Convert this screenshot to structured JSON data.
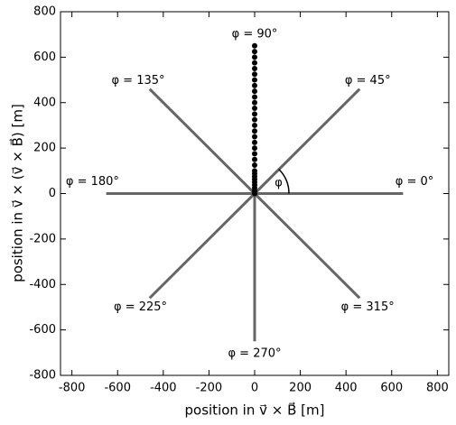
{
  "chart_data": {
    "type": "line",
    "xlabel": "position in v⃗ × B⃗ [m]",
    "ylabel": "position in v⃗ × (v⃗ × B⃗) [m]",
    "xlim": [
      -850,
      850
    ],
    "ylim": [
      -800,
      800
    ],
    "xticks": [
      -800,
      -600,
      -400,
      -200,
      0,
      200,
      400,
      600,
      800
    ],
    "yticks": [
      -800,
      -600,
      -400,
      -200,
      0,
      200,
      400,
      600,
      800
    ],
    "color": "#666666",
    "lines": [
      {
        "x": [
          0,
          650
        ],
        "y": [
          0,
          0
        ]
      },
      {
        "x": [
          0,
          459.6
        ],
        "y": [
          0,
          459.6
        ]
      },
      {
        "x": [
          0,
          -459.6
        ],
        "y": [
          0,
          459.6
        ]
      },
      {
        "x": [
          0,
          -650
        ],
        "y": [
          0,
          0
        ]
      },
      {
        "x": [
          0,
          -459.6
        ],
        "y": [
          0,
          -459.6
        ]
      },
      {
        "x": [
          0,
          0
        ],
        "y": [
          0,
          -650
        ]
      },
      {
        "x": [
          0,
          459.6
        ],
        "y": [
          0,
          -459.6
        ]
      }
    ],
    "points": {
      "color": "#000000",
      "x": [
        0,
        0,
        0,
        0,
        0,
        0,
        0,
        0,
        0,
        0,
        0,
        0,
        0,
        0,
        0,
        0,
        0,
        0,
        0,
        0,
        0,
        0,
        0,
        0,
        0,
        0,
        0,
        0,
        0,
        0,
        0
      ],
      "y": [
        0,
        12.5,
        25,
        37.5,
        50,
        62.5,
        75,
        87.5,
        100,
        125,
        150,
        175,
        200,
        225,
        250,
        275,
        300,
        325,
        350,
        375,
        400,
        425,
        450,
        475,
        500,
        525,
        550,
        575,
        600,
        625,
        650
      ]
    },
    "annotations": [
      {
        "text": "φ = 0°",
        "x": 700,
        "y": 52
      },
      {
        "text": "φ = 45°",
        "x": 495,
        "y": 496
      },
      {
        "text": "φ = 90°",
        "x": 0,
        "y": 700
      },
      {
        "text": "φ = 135°",
        "x": -510,
        "y": 496
      },
      {
        "text": "φ = 180°",
        "x": -710,
        "y": 52
      },
      {
        "text": "φ = 225°",
        "x": -500,
        "y": -500
      },
      {
        "text": "φ = 270°",
        "x": 0,
        "y": -705
      },
      {
        "text": "φ = 315°",
        "x": 495,
        "y": -500
      },
      {
        "text": "φ",
        "x": 105,
        "y": 45
      }
    ]
  }
}
